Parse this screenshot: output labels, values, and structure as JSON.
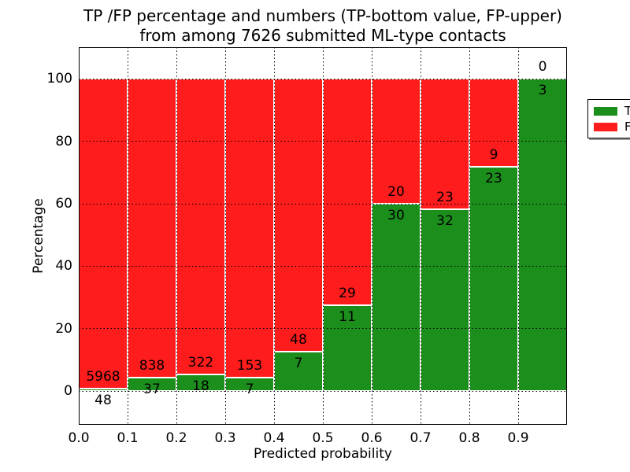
{
  "title": {
    "line1": "TP /FP percentage and numbers (TP-bottom value, FP-upper)",
    "line2": "from among 7626 submitted ML-type contacts"
  },
  "chart_data": {
    "type": "bar",
    "stacked": true,
    "normalized_to_percent": true,
    "title": "TP /FP percentage and numbers (TP-bottom value, FP-upper) from among 7626 submitted ML-type contacts",
    "xlabel": "Predicted probability",
    "ylabel": "Percentage",
    "total_contacts": 7626,
    "bin_edges": [
      0.0,
      0.1,
      0.2,
      0.3,
      0.4,
      0.5,
      0.6,
      0.7,
      0.8,
      0.9,
      1.0
    ],
    "series": [
      {
        "name": "TP",
        "color": "#1c8e1c",
        "counts": [
          48,
          37,
          18,
          7,
          7,
          11,
          30,
          32,
          23,
          3
        ]
      },
      {
        "name": "FP",
        "color": "#ff1c1c",
        "counts": [
          5968,
          838,
          322,
          153,
          48,
          29,
          20,
          23,
          9,
          0
        ]
      }
    ],
    "tp_percent_of_bin": [
      0.8,
      4.2,
      5.3,
      4.4,
      12.7,
      27.5,
      60.0,
      58.2,
      71.9,
      100.0
    ],
    "x_ticks": [
      "0.0",
      "0.1",
      "0.2",
      "0.3",
      "0.4",
      "0.5",
      "0.6",
      "0.7",
      "0.8",
      "0.9"
    ],
    "y_ticks": [
      0,
      20,
      40,
      60,
      80,
      100
    ],
    "xlim": [
      0.0,
      1.0
    ],
    "ylim": [
      -10.8,
      110.2
    ],
    "grid": true,
    "grid_style": "dotted",
    "legend_position": "upper right"
  },
  "legend": {
    "items": [
      {
        "label": "TP",
        "color": "#1c8e1c"
      },
      {
        "label": "FP",
        "color": "#ff1c1c"
      }
    ]
  }
}
